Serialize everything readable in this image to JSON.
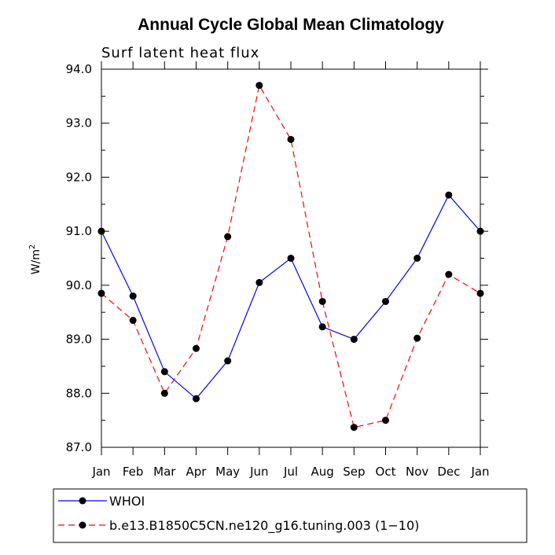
{
  "chart_data": {
    "type": "line",
    "title": "Annual Cycle Global Mean Climatology",
    "subtitle": "Surf latent heat flux",
    "ylabel_base": "W/m",
    "ylabel_sup": "2",
    "xlabel": "",
    "categories": [
      "Jan",
      "Feb",
      "Mar",
      "Apr",
      "May",
      "Jun",
      "Jul",
      "Aug",
      "Sep",
      "Oct",
      "Nov",
      "Dec",
      "Jan"
    ],
    "ylim": [
      87.0,
      94.0
    ],
    "yticks": [
      "87.0",
      "88.0",
      "89.0",
      "90.0",
      "91.0",
      "92.0",
      "93.0",
      "94.0"
    ],
    "series": [
      {
        "name": "WHOI",
        "color": "#0000ff",
        "style": "solid",
        "values": [
          91.0,
          89.8,
          88.4,
          87.9,
          88.6,
          90.05,
          90.5,
          89.23,
          89.0,
          89.7,
          90.5,
          91.67,
          91.0
        ]
      },
      {
        "name": "b.e13.B1850C5CN.ne120_g16.tuning.003 (1−10)",
        "color": "#ff0000",
        "style": "dashed",
        "values": [
          89.85,
          89.35,
          88.0,
          88.83,
          90.9,
          93.7,
          92.7,
          89.7,
          87.37,
          87.5,
          89.02,
          90.2,
          89.85
        ]
      }
    ],
    "legend": "bottom"
  }
}
